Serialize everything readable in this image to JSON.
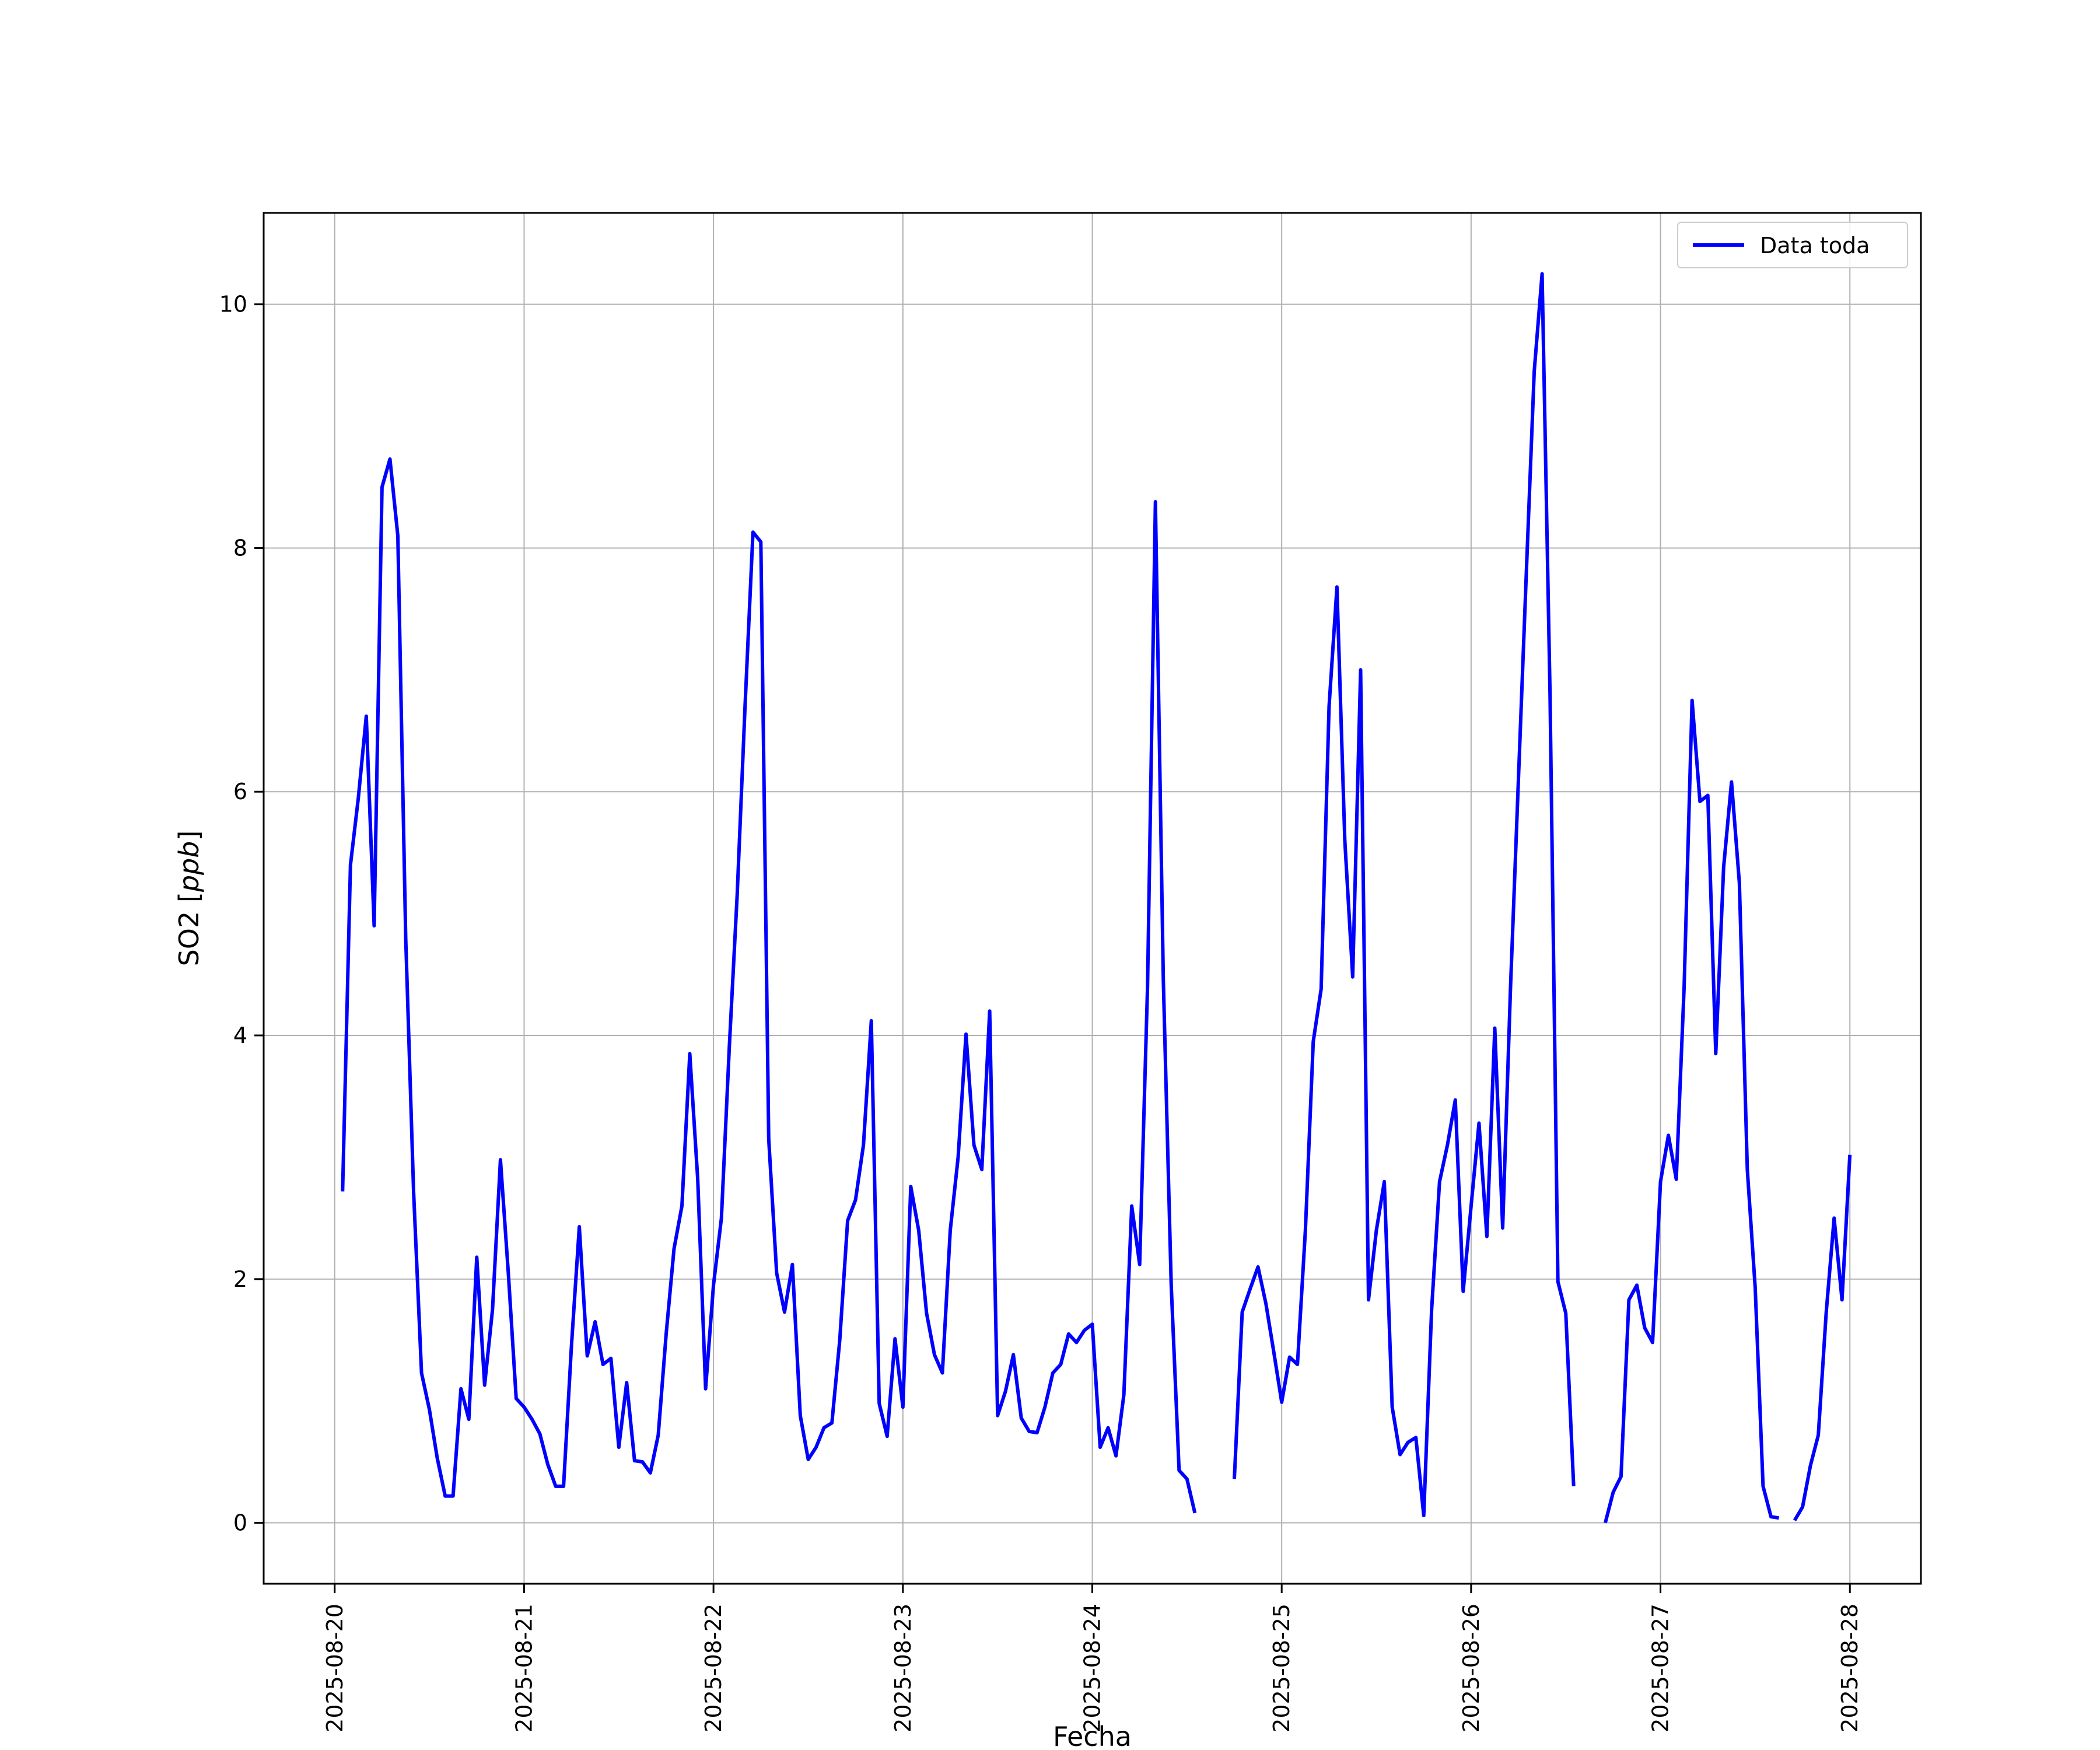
{
  "chart_data": {
    "type": "line",
    "xlabel": "Fecha",
    "ylabel_text": "SO2 [",
    "ylabel_unit": "ppb",
    "ylabel_close": "]",
    "xlim": [
      "2025-08-19T15:00",
      "2025-08-28T09:00"
    ],
    "ylim": [
      -0.5,
      10.75
    ],
    "x_ticks": [
      "2025-08-20",
      "2025-08-21",
      "2025-08-22",
      "2025-08-23",
      "2025-08-24",
      "2025-08-25",
      "2025-08-26",
      "2025-08-27",
      "2025-08-28"
    ],
    "y_ticks": [
      0,
      2,
      4,
      6,
      8,
      10
    ],
    "grid": true,
    "legend_position": "top-right",
    "line_color": "#0000ff",
    "series": [
      {
        "name": "Data toda",
        "points": [
          [
            "2025-08-20T01:00",
            2.72
          ],
          [
            "2025-08-20T02:00",
            5.4
          ],
          [
            "2025-08-20T03:00",
            5.95
          ],
          [
            "2025-08-20T04:00",
            6.62
          ],
          [
            "2025-08-20T05:00",
            4.9
          ],
          [
            "2025-08-20T06:00",
            8.5
          ],
          [
            "2025-08-20T07:00",
            8.73
          ],
          [
            "2025-08-20T08:00",
            8.1
          ],
          [
            "2025-08-20T09:00",
            4.8
          ],
          [
            "2025-08-20T10:00",
            2.72
          ],
          [
            "2025-08-20T11:00",
            1.23
          ],
          [
            "2025-08-20T12:00",
            0.93
          ],
          [
            "2025-08-20T13:00",
            0.53
          ],
          [
            "2025-08-20T14:00",
            0.22
          ],
          [
            "2025-08-20T15:00",
            0.22
          ],
          [
            "2025-08-20T16:00",
            1.1
          ],
          [
            "2025-08-20T17:00",
            0.85
          ],
          [
            "2025-08-20T18:00",
            2.18
          ],
          [
            "2025-08-20T19:00",
            1.13
          ],
          [
            "2025-08-20T20:00",
            1.75
          ],
          [
            "2025-08-20T21:00",
            2.98
          ],
          [
            "2025-08-20T22:00",
            2.05
          ],
          [
            "2025-08-20T23:00",
            1.02
          ],
          [
            "2025-08-21T00:00",
            0.95
          ],
          [
            "2025-08-21T01:00",
            0.85
          ],
          [
            "2025-08-21T02:00",
            0.73
          ],
          [
            "2025-08-21T03:00",
            0.48
          ],
          [
            "2025-08-21T04:00",
            0.3
          ],
          [
            "2025-08-21T05:00",
            0.3
          ],
          [
            "2025-08-21T06:00",
            1.45
          ],
          [
            "2025-08-21T07:00",
            2.43
          ],
          [
            "2025-08-21T08:00",
            1.37
          ],
          [
            "2025-08-21T09:00",
            1.65
          ],
          [
            "2025-08-21T10:00",
            1.3
          ],
          [
            "2025-08-21T11:00",
            1.35
          ],
          [
            "2025-08-21T12:00",
            0.62
          ],
          [
            "2025-08-21T13:00",
            1.15
          ],
          [
            "2025-08-21T14:00",
            0.51
          ],
          [
            "2025-08-21T15:00",
            0.5
          ],
          [
            "2025-08-21T16:00",
            0.41
          ],
          [
            "2025-08-21T17:00",
            0.72
          ],
          [
            "2025-08-21T18:00",
            1.55
          ],
          [
            "2025-08-21T19:00",
            2.25
          ],
          [
            "2025-08-21T20:00",
            2.6
          ],
          [
            "2025-08-21T21:00",
            3.85
          ],
          [
            "2025-08-21T22:00",
            2.82
          ],
          [
            "2025-08-21T23:00",
            1.1
          ],
          [
            "2025-08-22T00:00",
            1.95
          ],
          [
            "2025-08-22T01:00",
            2.5
          ],
          [
            "2025-08-22T02:00",
            3.9
          ],
          [
            "2025-08-22T03:00",
            5.15
          ],
          [
            "2025-08-22T04:00",
            6.7
          ],
          [
            "2025-08-22T05:00",
            8.13
          ],
          [
            "2025-08-22T06:00",
            8.05
          ],
          [
            "2025-08-22T07:00",
            3.15
          ],
          [
            "2025-08-22T08:00",
            2.05
          ],
          [
            "2025-08-22T09:00",
            1.73
          ],
          [
            "2025-08-22T10:00",
            2.12
          ],
          [
            "2025-08-22T11:00",
            0.88
          ],
          [
            "2025-08-22T12:00",
            0.52
          ],
          [
            "2025-08-22T13:00",
            0.62
          ],
          [
            "2025-08-22T14:00",
            0.78
          ],
          [
            "2025-08-22T15:00",
            0.82
          ],
          [
            "2025-08-22T16:00",
            1.5
          ],
          [
            "2025-08-22T17:00",
            2.48
          ],
          [
            "2025-08-22T18:00",
            2.65
          ],
          [
            "2025-08-22T19:00",
            3.1
          ],
          [
            "2025-08-22T20:00",
            4.12
          ],
          [
            "2025-08-22T21:00",
            0.98
          ],
          [
            "2025-08-22T22:00",
            0.71
          ],
          [
            "2025-08-22T23:00",
            1.51
          ],
          [
            "2025-08-23T00:00",
            0.95
          ],
          [
            "2025-08-23T01:00",
            2.76
          ],
          [
            "2025-08-23T02:00",
            2.4
          ],
          [
            "2025-08-23T03:00",
            1.72
          ],
          [
            "2025-08-23T04:00",
            1.38
          ],
          [
            "2025-08-23T05:00",
            1.23
          ],
          [
            "2025-08-23T06:00",
            2.4
          ],
          [
            "2025-08-23T07:00",
            3.0
          ],
          [
            "2025-08-23T08:00",
            4.01
          ],
          [
            "2025-08-23T09:00",
            3.1
          ],
          [
            "2025-08-23T10:00",
            2.9
          ],
          [
            "2025-08-23T11:00",
            4.2
          ],
          [
            "2025-08-23T12:00",
            0.88
          ],
          [
            "2025-08-23T13:00",
            1.08
          ],
          [
            "2025-08-23T14:00",
            1.38
          ],
          [
            "2025-08-23T15:00",
            0.86
          ],
          [
            "2025-08-23T16:00",
            0.75
          ],
          [
            "2025-08-23T17:00",
            0.74
          ],
          [
            "2025-08-23T18:00",
            0.95
          ],
          [
            "2025-08-23T19:00",
            1.23
          ],
          [
            "2025-08-23T20:00",
            1.3
          ],
          [
            "2025-08-23T21:00",
            1.55
          ],
          [
            "2025-08-23T22:00",
            1.48
          ],
          [
            "2025-08-23T23:00",
            1.58
          ],
          [
            "2025-08-24T00:00",
            1.63
          ],
          [
            "2025-08-24T01:00",
            0.62
          ],
          [
            "2025-08-24T02:00",
            0.78
          ],
          [
            "2025-08-24T03:00",
            0.55
          ],
          [
            "2025-08-24T04:00",
            1.05
          ],
          [
            "2025-08-24T05:00",
            2.6
          ],
          [
            "2025-08-24T06:00",
            2.12
          ],
          [
            "2025-08-24T07:00",
            4.4
          ],
          [
            "2025-08-24T08:00",
            8.38
          ],
          [
            "2025-08-24T09:00",
            4.45
          ],
          [
            "2025-08-24T10:00",
            1.95
          ],
          [
            "2025-08-24T11:00",
            0.43
          ],
          [
            "2025-08-24T12:00",
            0.36
          ],
          [
            "2025-08-24T13:00",
            0.08
          ],
          null,
          [
            "2025-08-24T18:00",
            0.36
          ],
          [
            "2025-08-24T19:00",
            1.73
          ],
          [
            "2025-08-24T20:00",
            1.92
          ],
          [
            "2025-08-24T21:00",
            2.1
          ],
          [
            "2025-08-24T22:00",
            1.8
          ],
          [
            "2025-08-24T23:00",
            1.4
          ],
          [
            "2025-08-25T00:00",
            0.99
          ],
          [
            "2025-08-25T01:00",
            1.36
          ],
          [
            "2025-08-25T02:00",
            1.3
          ],
          [
            "2025-08-25T03:00",
            2.4
          ],
          [
            "2025-08-25T04:00",
            3.95
          ],
          [
            "2025-08-25T05:00",
            4.38
          ],
          [
            "2025-08-25T06:00",
            6.7
          ],
          [
            "2025-08-25T07:00",
            7.68
          ],
          [
            "2025-08-25T08:00",
            5.6
          ],
          [
            "2025-08-25T09:00",
            4.48
          ],
          [
            "2025-08-25T10:00",
            7.0
          ],
          [
            "2025-08-25T11:00",
            1.83
          ],
          [
            "2025-08-25T12:00",
            2.4
          ],
          [
            "2025-08-25T13:00",
            2.8
          ],
          [
            "2025-08-25T14:00",
            0.95
          ],
          [
            "2025-08-25T15:00",
            0.56
          ],
          [
            "2025-08-25T16:00",
            0.66
          ],
          [
            "2025-08-25T17:00",
            0.7
          ],
          [
            "2025-08-25T18:00",
            0.06
          ],
          [
            "2025-08-25T19:00",
            1.75
          ],
          [
            "2025-08-25T20:00",
            2.8
          ],
          [
            "2025-08-25T21:00",
            3.1
          ],
          [
            "2025-08-25T22:00",
            3.47
          ],
          [
            "2025-08-25T23:00",
            1.9
          ],
          [
            "2025-08-26T00:00",
            2.6
          ],
          [
            "2025-08-26T01:00",
            3.28
          ],
          [
            "2025-08-26T02:00",
            2.35
          ],
          [
            "2025-08-26T03:00",
            4.06
          ],
          [
            "2025-08-26T04:00",
            2.42
          ],
          [
            "2025-08-26T05:00",
            4.4
          ],
          [
            "2025-08-26T06:00",
            6.1
          ],
          [
            "2025-08-26T07:00",
            7.8
          ],
          [
            "2025-08-26T08:00",
            9.45
          ],
          [
            "2025-08-26T09:00",
            10.25
          ],
          [
            "2025-08-26T10:00",
            6.8
          ],
          [
            "2025-08-26T11:00",
            1.98
          ],
          [
            "2025-08-26T12:00",
            1.72
          ],
          [
            "2025-08-26T13:00",
            0.3
          ],
          null,
          [
            "2025-08-26T17:00",
            0.0
          ],
          [
            "2025-08-26T18:00",
            0.25
          ],
          [
            "2025-08-26T19:00",
            0.38
          ],
          [
            "2025-08-26T20:00",
            1.83
          ],
          [
            "2025-08-26T21:00",
            1.95
          ],
          [
            "2025-08-26T22:00",
            1.6
          ],
          [
            "2025-08-26T23:00",
            1.48
          ],
          [
            "2025-08-27T00:00",
            2.8
          ],
          [
            "2025-08-27T01:00",
            3.18
          ],
          [
            "2025-08-27T02:00",
            2.82
          ],
          [
            "2025-08-27T03:00",
            4.4
          ],
          [
            "2025-08-27T04:00",
            6.75
          ],
          [
            "2025-08-27T05:00",
            5.92
          ],
          [
            "2025-08-27T06:00",
            5.97
          ],
          [
            "2025-08-27T07:00",
            3.85
          ],
          [
            "2025-08-27T08:00",
            5.38
          ],
          [
            "2025-08-27T09:00",
            6.08
          ],
          [
            "2025-08-27T10:00",
            5.25
          ],
          [
            "2025-08-27T11:00",
            2.9
          ],
          [
            "2025-08-27T12:00",
            1.93
          ],
          [
            "2025-08-27T13:00",
            0.3
          ],
          [
            "2025-08-27T14:00",
            0.05
          ],
          [
            "2025-08-27T15:00",
            0.04
          ],
          null,
          [
            "2025-08-27T17:00",
            0.02
          ],
          [
            "2025-08-27T18:00",
            0.13
          ],
          [
            "2025-08-27T19:00",
            0.47
          ],
          [
            "2025-08-27T20:00",
            0.72
          ],
          [
            "2025-08-27T21:00",
            1.73
          ],
          [
            "2025-08-27T22:00",
            2.5
          ],
          [
            "2025-08-27T23:00",
            1.83
          ],
          [
            "2025-08-28T00:00",
            3.02
          ]
        ]
      }
    ]
  }
}
